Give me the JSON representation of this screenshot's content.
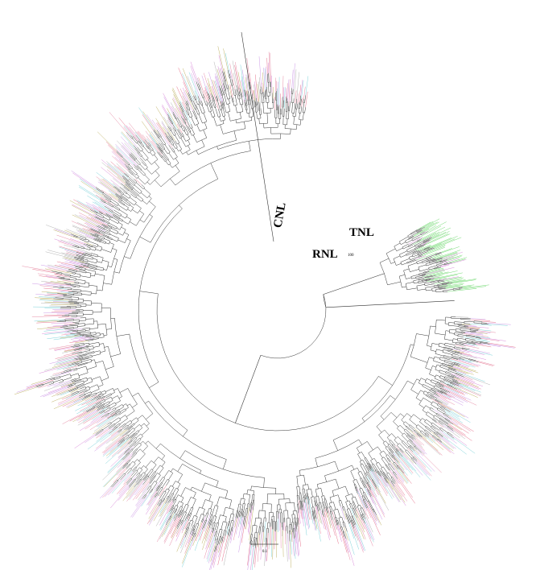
{
  "clades": [
    {
      "label": "CNL"
    },
    {
      "label": "TNL"
    },
    {
      "label": "RNL"
    }
  ],
  "support": "100",
  "scale_bar": "0.1"
}
